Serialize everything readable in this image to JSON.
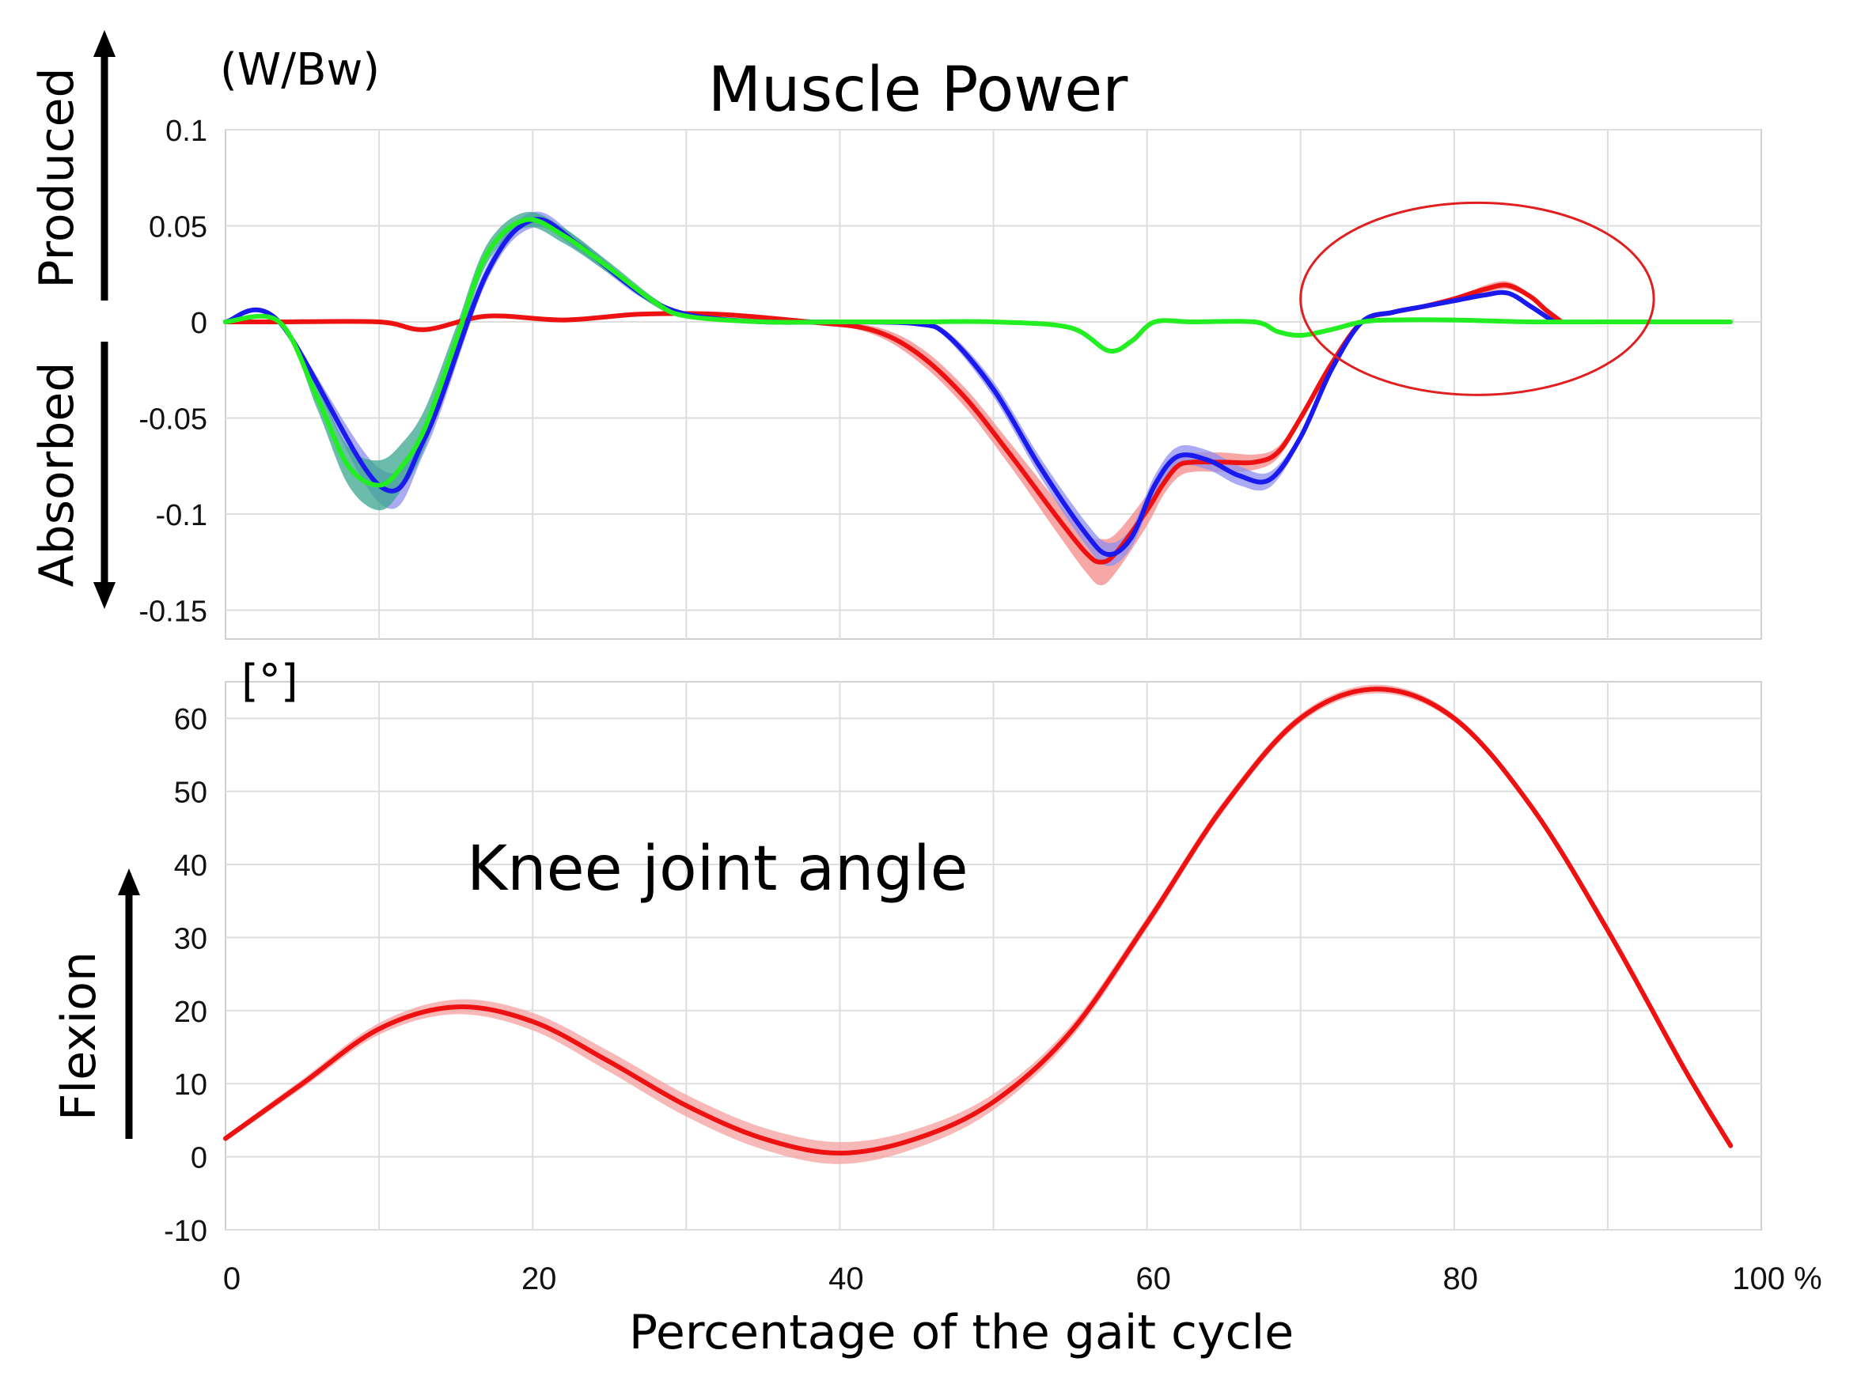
{
  "chart_data": [
    {
      "type": "line",
      "title": "Muscle Power",
      "unit_label": "(W/Bw)",
      "xlabel": "Percentage of the gait cycle",
      "ylabel_up": "Produced",
      "ylabel_down": "Absorbed",
      "xlim": [
        0,
        100
      ],
      "ylim": [
        -0.165,
        0.1
      ],
      "yticks": [
        {
          "value": 0.1,
          "label": "0.1"
        },
        {
          "value": 0.05,
          "label": "0.05"
        },
        {
          "value": 0,
          "label": "0"
        },
        {
          "value": -0.05,
          "label": "-0.05"
        },
        {
          "value": -0.1,
          "label": "-0.1"
        },
        {
          "value": -0.15,
          "label": "-0.15"
        }
      ],
      "grid": true,
      "highlight": {
        "shape": "ellipse",
        "x_range": [
          70,
          93
        ],
        "y_range": [
          -0.038,
          0.062
        ],
        "color": "#e02020"
      },
      "series": [
        {
          "name": "red",
          "color": "#ee1111",
          "band_color": "#f58a8a",
          "x": [
            0,
            3.5,
            10,
            13,
            17,
            22,
            27,
            32,
            38,
            42,
            45,
            48,
            51,
            54,
            56,
            57,
            58,
            60,
            61,
            62,
            63,
            65,
            67,
            68.5,
            70,
            72,
            74,
            76,
            78,
            80,
            82,
            83.5,
            85,
            86,
            87
          ],
          "values": [
            0,
            0,
            0,
            -0.004,
            0.003,
            0.001,
            0.004,
            0.004,
            0,
            -0.004,
            -0.016,
            -0.038,
            -0.068,
            -0.1,
            -0.12,
            -0.125,
            -0.12,
            -0.098,
            -0.085,
            -0.075,
            -0.073,
            -0.073,
            -0.073,
            -0.068,
            -0.05,
            -0.022,
            0,
            0.005,
            0.008,
            0.012,
            0.017,
            0.019,
            0.013,
            0.006,
            0
          ],
          "band_width": [
            0,
            0,
            0,
            0,
            0,
            0,
            0,
            0,
            0,
            0.002,
            0.004,
            0.005,
            0.006,
            0.008,
            0.01,
            0.012,
            0.01,
            0.008,
            0.006,
            0.006,
            0.005,
            0.005,
            0.004,
            0.003,
            0.002,
            0.001,
            0,
            0,
            0,
            0,
            0.002,
            0.002,
            0.001,
            0,
            0
          ]
        },
        {
          "name": "blue",
          "color": "#1a1aee",
          "band_color": "#8f8ff0",
          "x": [
            0,
            3.5,
            10,
            13,
            17,
            20,
            23,
            27,
            30,
            35,
            40,
            45,
            47,
            50,
            53,
            56,
            57.5,
            59,
            60.5,
            62,
            64,
            66,
            68,
            70,
            72,
            74,
            76,
            78,
            80,
            82,
            83.5,
            85,
            86.5
          ],
          "values": [
            0,
            0,
            -0.085,
            -0.06,
            0.025,
            0.053,
            0.04,
            0.015,
            0.004,
            0,
            0,
            -0.001,
            -0.007,
            -0.035,
            -0.075,
            -0.11,
            -0.121,
            -0.112,
            -0.085,
            -0.07,
            -0.072,
            -0.08,
            -0.082,
            -0.06,
            -0.025,
            0,
            0.005,
            0.008,
            0.011,
            0.014,
            0.015,
            0.008,
            0
          ],
          "band_width": [
            0,
            0,
            0.009,
            0.007,
            0.004,
            0.004,
            0.003,
            0.002,
            0,
            0,
            0,
            0,
            0.002,
            0.004,
            0.005,
            0.006,
            0.006,
            0.005,
            0.005,
            0.005,
            0.005,
            0.005,
            0.004,
            0.002,
            0.001,
            0,
            0,
            0,
            0,
            0.001,
            0.001,
            0,
            0
          ]
        },
        {
          "name": "green",
          "color": "#22ee22",
          "band_color": "#3aa58f",
          "x": [
            0,
            3.5,
            6,
            8,
            10,
            11.5,
            13,
            15,
            17,
            19.5,
            22,
            25,
            28,
            30,
            35,
            40,
            45,
            50,
            55,
            57.5,
            59,
            60.5,
            63,
            67,
            68.5,
            70,
            72,
            74,
            76,
            80,
            85,
            90,
            95,
            98
          ],
          "values": [
            0,
            0,
            -0.04,
            -0.075,
            -0.085,
            -0.075,
            -0.055,
            -0.01,
            0.035,
            0.053,
            0.045,
            0.028,
            0.01,
            0.003,
            0,
            0,
            0,
            0,
            -0.003,
            -0.015,
            -0.01,
            0,
            0,
            0,
            -0.005,
            -0.007,
            -0.004,
            0,
            0.001,
            0.001,
            0,
            0,
            0,
            0
          ],
          "band_width": [
            0,
            0,
            0.006,
            0.01,
            0.013,
            0.012,
            0.01,
            0.007,
            0.005,
            0.004,
            0.004,
            0.003,
            0.002,
            0.001,
            0,
            0,
            0,
            0,
            0,
            0.001,
            0.001,
            0,
            0,
            0,
            0,
            0,
            0,
            0,
            0,
            0,
            0,
            0,
            0,
            0
          ]
        }
      ]
    },
    {
      "type": "line",
      "title": "Knee joint angle",
      "unit_label": "[°]",
      "xlabel": "Percentage of the gait cycle",
      "ylabel": "Flexion",
      "xlim": [
        0,
        100
      ],
      "ylim": [
        -10,
        65
      ],
      "xticks": [
        {
          "value": 0,
          "label": "0"
        },
        {
          "value": 20,
          "label": "20"
        },
        {
          "value": 40,
          "label": "40"
        },
        {
          "value": 60,
          "label": "60"
        },
        {
          "value": 80,
          "label": "80"
        },
        {
          "value": 100,
          "label": "100 %"
        }
      ],
      "yticks": [
        {
          "value": 60,
          "label": "60"
        },
        {
          "value": 50,
          "label": "50"
        },
        {
          "value": 40,
          "label": "40"
        },
        {
          "value": 30,
          "label": "30"
        },
        {
          "value": 20,
          "label": "20"
        },
        {
          "value": 10,
          "label": "10"
        },
        {
          "value": 0,
          "label": "0"
        },
        {
          "value": -10,
          "label": "-10"
        }
      ],
      "grid": true,
      "series": [
        {
          "name": "knee angle",
          "color": "#ee1111",
          "band_color": "#f5a0a0",
          "x": [
            0,
            5,
            10,
            15,
            20,
            25,
            30,
            35,
            40,
            45,
            50,
            55,
            60,
            65,
            70,
            75,
            80,
            85,
            90,
            95,
            98
          ],
          "values": [
            2.5,
            10,
            17.5,
            20.5,
            18.5,
            13,
            7,
            2.5,
            0.5,
            2.5,
            7.5,
            17,
            32,
            48,
            60,
            64,
            60,
            48,
            31,
            12,
            1.5
          ],
          "band_width": [
            0.4,
            0.6,
            0.8,
            1,
            1.2,
            1.4,
            1.5,
            1.5,
            1.5,
            1.3,
            1.1,
            0.9,
            0.8,
            0.7,
            0.6,
            0.6,
            0.5,
            0.5,
            0.5,
            0.4,
            0.3
          ]
        }
      ]
    }
  ]
}
